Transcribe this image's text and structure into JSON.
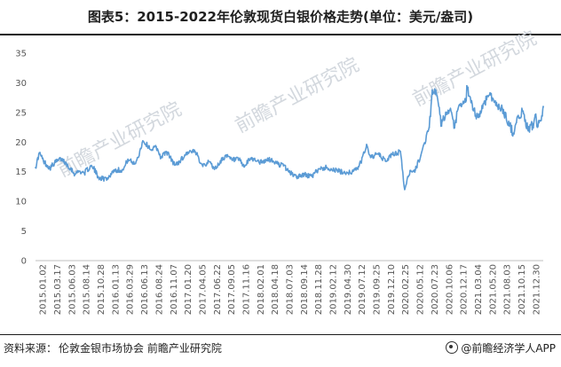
{
  "header": {
    "title": "图表5：2015-2022年伦敦现货白银价格走势(单位：美元/盎司)"
  },
  "footer": {
    "source_label": "资料来源：",
    "source_text": "伦敦金银市场协会 前瞻产业研究院",
    "brand": "@前瞻经济学人APP"
  },
  "watermark": {
    "text": "前瞻产业研究院"
  },
  "colors": {
    "line": "#5b9bd5",
    "grid": "#d9d9d9",
    "axis": "#bfbfbf"
  },
  "chart_data": {
    "type": "line",
    "title": "图表5：2015-2022年伦敦现货白银价格走势(单位：美元/盎司)",
    "xlabel": "",
    "ylabel": "",
    "ylim": [
      0,
      35
    ],
    "yticks": [
      0,
      5,
      10,
      15,
      20,
      25,
      30,
      35
    ],
    "grid": false,
    "xticks": [
      "2015.01.02",
      "2015.03.17",
      "2015.06.03",
      "2015.08.14",
      "2015.10.28",
      "2016.01.13",
      "2016.03.29",
      "2016.06.13",
      "2016.08.24",
      "2016.11.07",
      "2017.01.20",
      "2017.04.05",
      "2017.06.22",
      "2017.09.05",
      "2017.11.16",
      "2018.02.01",
      "2018.04.18",
      "2018.07.03",
      "2018.09.14",
      "2018.11.28",
      "2019.02.12",
      "2019.04.30",
      "2019.07.12",
      "2019.09.25",
      "2019.12.10",
      "2020.02.25",
      "2020.05.12",
      "2020.07.23",
      "2020.10.06",
      "2020.12.17",
      "2021.03.04",
      "2021.05.20",
      "2021.08.03",
      "2021.10.15",
      "2021.12.30"
    ],
    "series": [
      {
        "name": "",
        "points": [
          [
            "2015-01-02",
            15.7
          ],
          [
            "2015-01-22",
            18.2
          ],
          [
            "2015-02-12",
            16.8
          ],
          [
            "2015-03-17",
            15.6
          ],
          [
            "2015-04-10",
            16.5
          ],
          [
            "2015-05-15",
            17.2
          ],
          [
            "2015-06-03",
            16.6
          ],
          [
            "2015-07-01",
            15.6
          ],
          [
            "2015-07-24",
            14.6
          ],
          [
            "2015-08-14",
            15.1
          ],
          [
            "2015-09-10",
            14.8
          ],
          [
            "2015-10-14",
            15.9
          ],
          [
            "2015-10-28",
            15.6
          ],
          [
            "2015-11-20",
            14.2
          ],
          [
            "2015-12-14",
            13.8
          ],
          [
            "2016-01-13",
            14.0
          ],
          [
            "2016-02-10",
            15.3
          ],
          [
            "2016-03-29",
            15.3
          ],
          [
            "2016-04-22",
            17.1
          ],
          [
            "2016-05-25",
            16.3
          ],
          [
            "2016-06-13",
            17.4
          ],
          [
            "2016-07-08",
            20.2
          ],
          [
            "2016-08-24",
            18.7
          ],
          [
            "2016-09-15",
            19.2
          ],
          [
            "2016-10-10",
            17.4
          ],
          [
            "2016-11-07",
            18.4
          ],
          [
            "2016-12-20",
            16.1
          ],
          [
            "2017-01-20",
            17.0
          ],
          [
            "2017-02-24",
            18.3
          ],
          [
            "2017-04-05",
            18.3
          ],
          [
            "2017-05-10",
            16.2
          ],
          [
            "2017-06-22",
            16.6
          ],
          [
            "2017-07-12",
            15.4
          ],
          [
            "2017-09-05",
            17.7
          ],
          [
            "2017-10-10",
            17.0
          ],
          [
            "2017-11-16",
            17.0
          ],
          [
            "2017-12-12",
            15.8
          ],
          [
            "2018-01-15",
            17.3
          ],
          [
            "2018-02-01",
            17.1
          ],
          [
            "2018-03-15",
            16.5
          ],
          [
            "2018-04-18",
            17.1
          ],
          [
            "2018-05-30",
            16.4
          ],
          [
            "2018-07-03",
            16.0
          ],
          [
            "2018-08-15",
            14.6
          ],
          [
            "2018-09-14",
            14.2
          ],
          [
            "2018-10-20",
            14.5
          ],
          [
            "2018-11-28",
            14.2
          ],
          [
            "2018-12-31",
            15.5
          ],
          [
            "2019-02-12",
            15.7
          ],
          [
            "2019-03-20",
            15.3
          ],
          [
            "2019-04-30",
            14.9
          ],
          [
            "2019-06-10",
            14.9
          ],
          [
            "2019-07-12",
            15.3
          ],
          [
            "2019-08-05",
            16.5
          ],
          [
            "2019-09-04",
            19.6
          ],
          [
            "2019-09-25",
            17.4
          ],
          [
            "2019-11-01",
            18.0
          ],
          [
            "2019-12-10",
            16.8
          ],
          [
            "2020-01-15",
            17.9
          ],
          [
            "2020-02-25",
            18.4
          ],
          [
            "2020-03-18",
            12.0
          ],
          [
            "2020-04-15",
            15.2
          ],
          [
            "2020-05-12",
            15.3
          ],
          [
            "2020-06-10",
            17.8
          ],
          [
            "2020-07-23",
            22.5
          ],
          [
            "2020-08-07",
            28.8
          ],
          [
            "2020-09-01",
            27.8
          ],
          [
            "2020-09-24",
            22.7
          ],
          [
            "2020-10-06",
            24.1
          ],
          [
            "2020-11-06",
            25.4
          ],
          [
            "2020-11-30",
            22.4
          ],
          [
            "2020-12-17",
            25.5
          ],
          [
            "2021-01-29",
            27.0
          ],
          [
            "2021-02-01",
            29.5
          ],
          [
            "2021-03-04",
            25.5
          ],
          [
            "2021-03-31",
            24.2
          ],
          [
            "2021-05-20",
            27.8
          ],
          [
            "2021-06-01",
            28.3
          ],
          [
            "2021-07-01",
            26.2
          ],
          [
            "2021-08-03",
            25.6
          ],
          [
            "2021-09-29",
            21.5
          ],
          [
            "2021-10-15",
            23.3
          ],
          [
            "2021-11-15",
            25.3
          ],
          [
            "2021-12-15",
            21.9
          ],
          [
            "2021-12-30",
            23.1
          ],
          [
            "2022-01-10",
            22.4
          ],
          [
            "2022-01-20",
            24.6
          ],
          [
            "2022-01-31",
            22.5
          ],
          [
            "2022-02-14",
            23.6
          ],
          [
            "2022-02-25",
            24.4
          ],
          [
            "2022-03-02",
            26.0
          ]
        ]
      }
    ]
  }
}
